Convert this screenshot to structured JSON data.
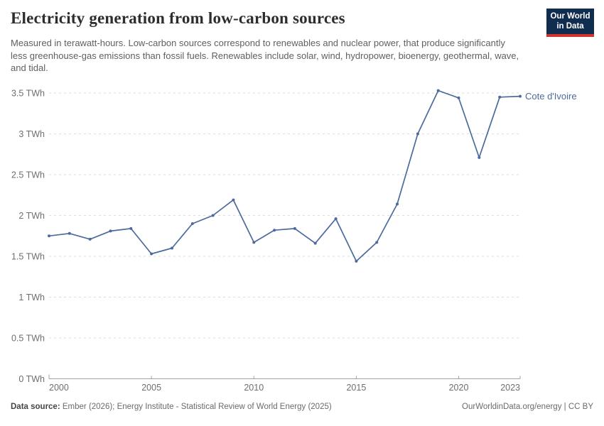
{
  "header": {
    "title": "Electricity generation from low-carbon sources",
    "subtitle": "Measured in terawatt-hours. Low-carbon sources correspond to renewables and nuclear power, that produce significantly less greenhouse-gas emissions than fossil fuels. Renewables include solar, wind, hydropower, bioenergy, geothermal, wave, and tidal.",
    "logo": {
      "line1": "Our World",
      "line2": "in Data",
      "bg_color": "#102d4f",
      "accent_color": "#d0342c"
    }
  },
  "chart_data": {
    "type": "line",
    "title": "Electricity generation from low-carbon sources",
    "unit": "TWh",
    "x": [
      2000,
      2001,
      2002,
      2003,
      2004,
      2005,
      2006,
      2007,
      2008,
      2009,
      2010,
      2011,
      2012,
      2013,
      2014,
      2015,
      2016,
      2017,
      2018,
      2019,
      2020,
      2021,
      2022,
      2023
    ],
    "series": [
      {
        "name": "Cote d'Ivoire",
        "color": "#4C6A9D",
        "values": [
          1.75,
          1.78,
          1.71,
          1.81,
          1.84,
          1.53,
          1.6,
          1.9,
          2.0,
          2.19,
          1.67,
          1.82,
          1.84,
          1.66,
          1.96,
          1.44,
          1.67,
          2.14,
          3.0,
          3.53,
          3.44,
          2.71,
          3.45,
          3.46
        ]
      }
    ],
    "xlim": [
      2000,
      2023
    ],
    "ylim": [
      0,
      3.5
    ],
    "yticks": [
      {
        "value": 0,
        "label": "0 TWh"
      },
      {
        "value": 0.5,
        "label": "0.5 TWh"
      },
      {
        "value": 1,
        "label": "1 TWh"
      },
      {
        "value": 1.5,
        "label": "1.5 TWh"
      },
      {
        "value": 2,
        "label": "2 TWh"
      },
      {
        "value": 2.5,
        "label": "2.5 TWh"
      },
      {
        "value": 3,
        "label": "3 TWh"
      },
      {
        "value": 3.5,
        "label": "3.5 TWh"
      }
    ],
    "xticks": [
      {
        "year": 2000,
        "label": "2000"
      },
      {
        "year": 2005,
        "label": "2005"
      },
      {
        "year": 2010,
        "label": "2010"
      },
      {
        "year": 2015,
        "label": "2015"
      },
      {
        "year": 2020,
        "label": "2020"
      },
      {
        "year": 2023,
        "label": "2023"
      }
    ],
    "grid": "dashed-horizontal",
    "grid_color": "#dddddd",
    "axis_color": "#a3a3a3",
    "axis_text_color": "#6e6e6e",
    "legend_position": "right-of-line-end"
  },
  "footer": {
    "source_label": "Data source:",
    "source_text": "Ember (2026); Energy Institute - Statistical Review of World Energy (2025)",
    "link_text": "OurWorldinData.org/energy",
    "separator": " | ",
    "license_text": "CC BY"
  }
}
